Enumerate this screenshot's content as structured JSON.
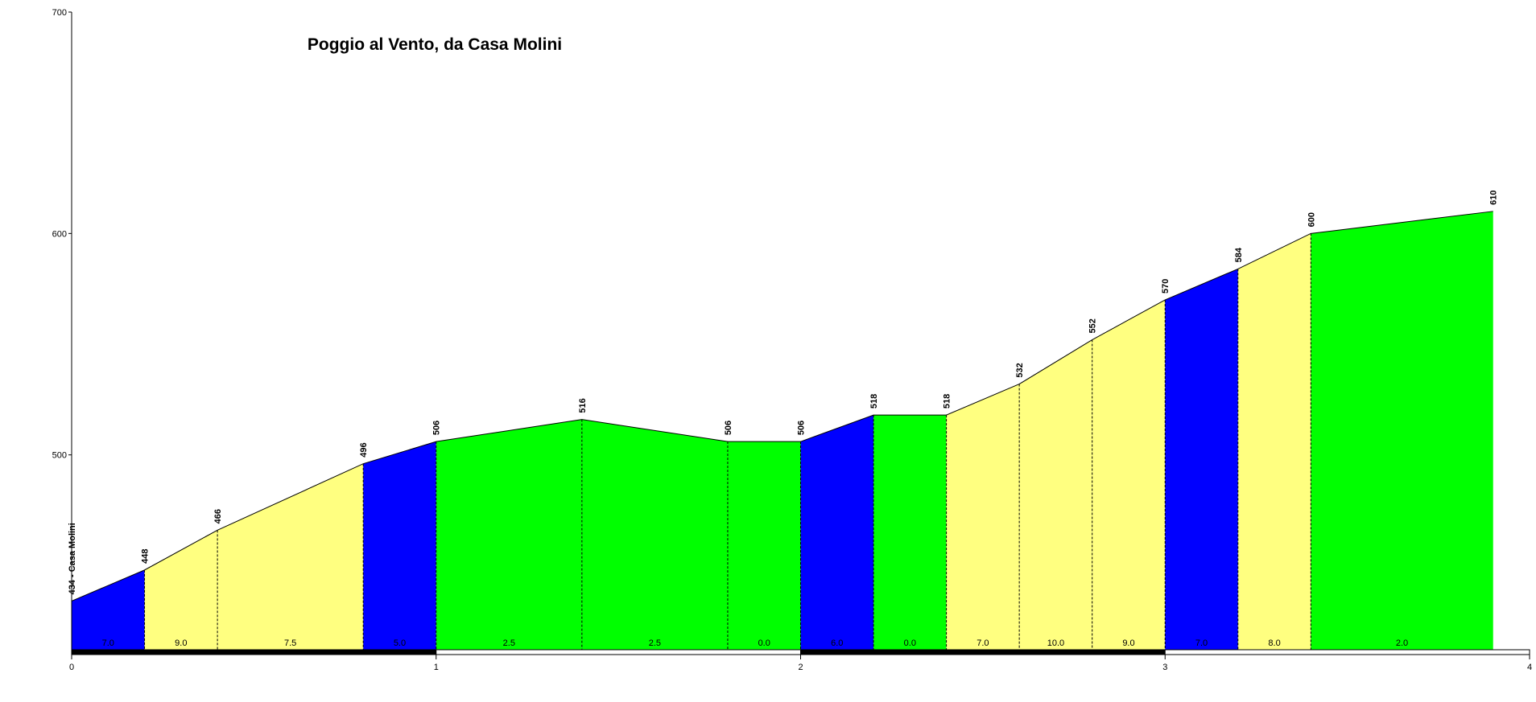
{
  "chart_data": {
    "type": "area",
    "title": "Poggio al Vento, da Casa Molini",
    "x": [
      0,
      0.2,
      0.4,
      0.8,
      1.0,
      1.4,
      1.8,
      2.0,
      2.2,
      2.4,
      2.6,
      2.8,
      3.0,
      3.2,
      3.4,
      3.9
    ],
    "series": [
      {
        "values": [
          434,
          448,
          466,
          496,
          506,
          516,
          506,
          506,
          518,
          518,
          532,
          552,
          570,
          584,
          600,
          610
        ],
        "value_labels": [
          "434 - Casa Molini",
          "448",
          "466",
          "496",
          "506",
          "516",
          "506",
          "506",
          "518",
          "518",
          "532",
          "552",
          "570",
          "584",
          "600",
          "610"
        ]
      }
    ],
    "segments": {
      "values": [
        7,
        9,
        7.5,
        5,
        2.5,
        2.5,
        0,
        6,
        0,
        7,
        10,
        9,
        7,
        8,
        2
      ],
      "value_labels": [
        "7.0",
        "9.0",
        "7.5",
        "5.0",
        "2.5",
        "2.5",
        "0.0",
        "6.0",
        "0.0",
        "7.0",
        "10.0",
        "9.0",
        "7.0",
        "8.0",
        "2.0"
      ],
      "colors": [
        "#0000ff",
        "#ffff80",
        "#ffff80",
        "#0000ff",
        "#00ff00",
        "#00ff00",
        "#00ff00",
        "#0000ff",
        "#00ff00",
        "#ffff80",
        "#ffff80",
        "#ffff80",
        "#0000ff",
        "#ffff80",
        "#00ff00"
      ]
    },
    "xlim": [
      0,
      4
    ],
    "xticks": [
      0,
      1,
      2,
      3,
      4
    ],
    "ylim": [
      412,
      700
    ],
    "yticks": [
      500,
      600,
      700
    ]
  }
}
